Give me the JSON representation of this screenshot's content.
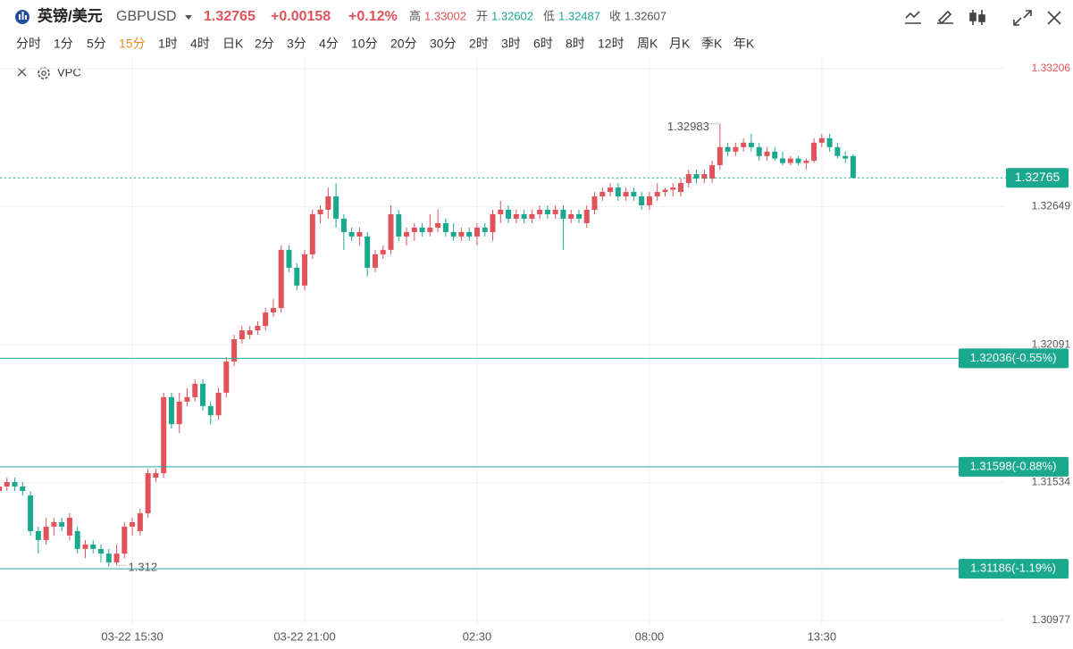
{
  "header": {
    "symbol_cn": "英镑/美元",
    "symbol": "GBPUSD",
    "change": "+0.00158",
    "change_pct": "+0.12%",
    "high_label": "高",
    "high": "1.33002",
    "open_label": "开",
    "open": "1.32602",
    "low_label": "低",
    "low": "1.32487",
    "close_label": "收",
    "close": "1.32607",
    "tabs": [
      {
        "label": "分时"
      },
      {
        "label": "1分"
      },
      {
        "label": "5分"
      },
      {
        "label": "15分",
        "active": true
      },
      {
        "label": "1时"
      },
      {
        "label": "4时"
      },
      {
        "label": "日K"
      },
      {
        "label": "2分"
      },
      {
        "label": "3分"
      },
      {
        "label": "4分"
      },
      {
        "label": "10分"
      },
      {
        "label": "20分"
      },
      {
        "label": "30分"
      },
      {
        "label": "2时"
      },
      {
        "label": "3时"
      },
      {
        "label": "6时"
      },
      {
        "label": "8时"
      },
      {
        "label": "12时"
      },
      {
        "label": "周K"
      },
      {
        "label": "月K"
      },
      {
        "label": "季K"
      },
      {
        "label": "年K"
      }
    ],
    "indicator": "VPC"
  },
  "chart_data": {
    "type": "candlestick",
    "up_color": "#e2525b",
    "down_color": "#1aa88e",
    "grid": true,
    "last_price": 1.32765,
    "levels": [
      {
        "value": 1.32036,
        "label": "1.32036(-0.55%)"
      },
      {
        "value": 1.31598,
        "label": "1.31598(-0.88%)"
      },
      {
        "value": 1.31186,
        "label": "1.31186(-1.19%)"
      }
    ],
    "ylim": [
      1.30923,
      1.33249
    ],
    "yticks": [
      1.33206,
      1.32649,
      1.32091,
      1.31534,
      1.30977
    ],
    "high_annotation_index": 92,
    "low_annotation_index": 15,
    "categories": [
      null,
      null,
      null,
      null,
      null,
      null,
      null,
      null,
      null,
      null,
      null,
      null,
      null,
      null,
      null,
      null,
      null,
      "03-22 15:30",
      null,
      null,
      null,
      null,
      null,
      null,
      null,
      null,
      null,
      null,
      null,
      null,
      null,
      null,
      null,
      null,
      null,
      null,
      null,
      null,
      null,
      "03-22 21:00",
      null,
      null,
      null,
      null,
      null,
      null,
      null,
      null,
      null,
      null,
      null,
      null,
      null,
      null,
      null,
      null,
      null,
      null,
      null,
      null,
      null,
      "02:30",
      null,
      null,
      null,
      null,
      null,
      null,
      null,
      null,
      null,
      null,
      null,
      null,
      null,
      null,
      null,
      null,
      null,
      null,
      null,
      null,
      null,
      "08:00",
      null,
      null,
      null,
      null,
      null,
      null,
      null,
      null,
      null,
      null,
      null,
      null,
      null,
      null,
      null,
      null,
      null,
      null,
      null,
      null,
      null,
      "13:30",
      null,
      null,
      null,
      null
    ],
    "open": [
      1.315,
      1.31518,
      1.31536,
      1.31518,
      1.31482,
      1.31338,
      1.31302,
      1.31356,
      1.31374,
      1.3132,
      1.31338,
      1.31266,
      1.31284,
      1.31266,
      1.31247,
      1.31211,
      1.31247,
      1.31356,
      1.31338,
      1.3141,
      1.31554,
      1.31572,
      1.31879,
      1.3177,
      1.31861,
      1.31879,
      1.31933,
      1.31843,
      1.31806,
      1.31897,
      1.32023,
      1.32113,
      1.32131,
      1.32149,
      1.32167,
      1.32221,
      1.32239,
      1.32474,
      1.32402,
      1.3233,
      1.32456,
      1.32618,
      1.32636,
      1.3269,
      1.326,
      1.32546,
      1.32528,
      1.32528,
      1.32402,
      1.32456,
      1.32474,
      1.32618,
      1.32528,
      1.32546,
      1.32564,
      1.32546,
      1.32564,
      1.32582,
      1.32546,
      1.32528,
      1.32546,
      1.32528,
      1.32564,
      1.32546,
      1.32618,
      1.32636,
      1.326,
      1.32618,
      1.326,
      1.32618,
      1.32636,
      1.32618,
      1.32636,
      1.326,
      1.32618,
      1.32582,
      1.32636,
      1.3269,
      1.32708,
      1.32726,
      1.3269,
      1.32708,
      1.3269,
      1.32654,
      1.3269,
      1.32708,
      1.32717,
      1.32708,
      1.32744,
      1.3278,
      1.32762,
      1.32762,
      1.32816,
      1.32889,
      1.32871,
      1.32889,
      1.32907,
      1.32889,
      1.32853,
      1.32871,
      1.32843,
      1.32825,
      1.32843,
      1.32825,
      1.32834,
      1.32907,
      1.32925,
      1.32889,
      1.32853,
      1.32853
    ],
    "high": [
      1.31536,
      1.31554,
      1.31554,
      1.31536,
      1.315,
      1.31356,
      1.31392,
      1.31392,
      1.31392,
      1.3141,
      1.31356,
      1.31302,
      1.31302,
      1.31284,
      1.31266,
      1.31284,
      1.31374,
      1.31392,
      1.31428,
      1.3159,
      1.3159,
      1.31897,
      1.31897,
      1.31897,
      1.31915,
      1.31951,
      1.31951,
      1.31861,
      1.31915,
      1.32041,
      1.32131,
      1.32167,
      1.32167,
      1.32185,
      1.32239,
      1.32275,
      1.32492,
      1.32492,
      1.3242,
      1.32474,
      1.32636,
      1.32654,
      1.32726,
      1.32744,
      1.32618,
      1.32564,
      1.32564,
      1.32546,
      1.32474,
      1.32492,
      1.32654,
      1.32636,
      1.32564,
      1.32582,
      1.32582,
      1.32618,
      1.32636,
      1.326,
      1.32582,
      1.32564,
      1.32564,
      1.32582,
      1.32582,
      1.32636,
      1.32672,
      1.32654,
      1.32636,
      1.32636,
      1.32636,
      1.32654,
      1.32654,
      1.32654,
      1.32654,
      1.32636,
      1.32636,
      1.32654,
      1.32708,
      1.32726,
      1.32744,
      1.32744,
      1.32726,
      1.32726,
      1.32708,
      1.32708,
      1.32744,
      1.32726,
      1.32744,
      1.32762,
      1.32798,
      1.32798,
      1.32798,
      1.32834,
      1.32983,
      1.32907,
      1.32907,
      1.32925,
      1.32943,
      1.32907,
      1.32889,
      1.32889,
      1.32871,
      1.32853,
      1.32853,
      1.32843,
      1.32925,
      1.32943,
      1.32943,
      1.32907,
      1.32871,
      1.32862
    ],
    "low": [
      1.31446,
      1.315,
      1.315,
      1.31482,
      1.3132,
      1.31247,
      1.31284,
      1.3132,
      1.31338,
      1.31302,
      1.31247,
      1.31229,
      1.31247,
      1.31211,
      1.31193,
      1.312,
      1.31229,
      1.3132,
      1.3132,
      1.31392,
      1.31536,
      1.31554,
      1.31752,
      1.31734,
      1.31843,
      1.31861,
      1.31824,
      1.3177,
      1.31788,
      1.31879,
      1.32005,
      1.32095,
      1.32113,
      1.32131,
      1.32149,
      1.32203,
      1.32221,
      1.32384,
      1.32311,
      1.32311,
      1.32438,
      1.32582,
      1.326,
      1.32564,
      1.32474,
      1.3251,
      1.32492,
      1.32366,
      1.32384,
      1.32438,
      1.32456,
      1.3251,
      1.32492,
      1.3251,
      1.32528,
      1.32528,
      1.32546,
      1.32528,
      1.3251,
      1.3251,
      1.3251,
      1.32492,
      1.32528,
      1.3251,
      1.32582,
      1.32582,
      1.32582,
      1.32582,
      1.32582,
      1.326,
      1.326,
      1.326,
      1.32474,
      1.32582,
      1.32582,
      1.32564,
      1.32618,
      1.32672,
      1.3269,
      1.32672,
      1.32672,
      1.32672,
      1.32636,
      1.32636,
      1.32672,
      1.3269,
      1.3269,
      1.3269,
      1.32726,
      1.32744,
      1.32744,
      1.32744,
      1.32798,
      1.32853,
      1.32853,
      1.32871,
      1.32871,
      1.32834,
      1.32834,
      1.32834,
      1.32816,
      1.32816,
      1.32816,
      1.32798,
      1.32825,
      1.32889,
      1.32871,
      1.32843,
      1.32825,
      1.32762
    ],
    "close": [
      1.31518,
      1.31536,
      1.31518,
      1.315,
      1.31338,
      1.31302,
      1.31356,
      1.31374,
      1.31356,
      1.31392,
      1.31266,
      1.31284,
      1.31266,
      1.31247,
      1.31211,
      1.31247,
      1.31356,
      1.31374,
      1.3141,
      1.31572,
      1.31572,
      1.31879,
      1.3177,
      1.31861,
      1.31879,
      1.31933,
      1.31843,
      1.31806,
      1.31897,
      1.32023,
      1.32113,
      1.32149,
      1.32149,
      1.32167,
      1.32221,
      1.32239,
      1.32474,
      1.32402,
      1.3233,
      1.32456,
      1.32618,
      1.32636,
      1.3269,
      1.326,
      1.32546,
      1.32528,
      1.32546,
      1.32402,
      1.32456,
      1.32474,
      1.32618,
      1.32528,
      1.32546,
      1.32564,
      1.32546,
      1.32564,
      1.32582,
      1.32546,
      1.32528,
      1.32546,
      1.32528,
      1.32564,
      1.32546,
      1.32618,
      1.32636,
      1.326,
      1.32618,
      1.326,
      1.32618,
      1.32636,
      1.32618,
      1.32636,
      1.326,
      1.32618,
      1.326,
      1.32636,
      1.3269,
      1.32708,
      1.32726,
      1.3269,
      1.32708,
      1.3269,
      1.32654,
      1.3269,
      1.32708,
      1.32717,
      1.32726,
      1.32744,
      1.3278,
      1.32762,
      1.3278,
      1.32816,
      1.32889,
      1.32871,
      1.32889,
      1.32907,
      1.32889,
      1.32853,
      1.32871,
      1.32843,
      1.32825,
      1.32843,
      1.32825,
      1.32834,
      1.32907,
      1.32925,
      1.32889,
      1.32853,
      1.32843,
      1.32765
    ]
  }
}
